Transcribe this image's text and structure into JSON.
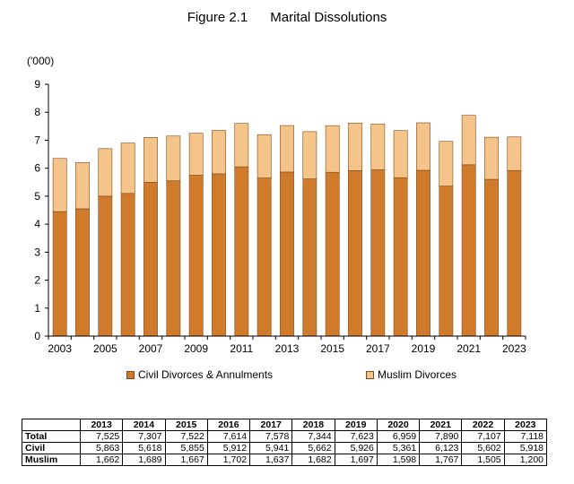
{
  "figure": {
    "number": "Figure 2.1",
    "title": "Marital Dissolutions",
    "unit_label": "('000)"
  },
  "chart_data": {
    "type": "bar",
    "stacked": true,
    "categories": [
      "2003",
      "2004",
      "2005",
      "2006",
      "2007",
      "2008",
      "2009",
      "2010",
      "2011",
      "2012",
      "2013",
      "2014",
      "2015",
      "2016",
      "2017",
      "2018",
      "2019",
      "2020",
      "2021",
      "2022",
      "2023"
    ],
    "x_tick_labels": [
      "2003",
      "2005",
      "2007",
      "2009",
      "2011",
      "2013",
      "2015",
      "2017",
      "2019",
      "2021",
      "2023"
    ],
    "series": [
      {
        "name": "Civil Divorces & Annulments",
        "color": "#d07a2c",
        "values": [
          4.45,
          4.55,
          5.0,
          5.1,
          5.5,
          5.55,
          5.75,
          5.8,
          6.05,
          5.65,
          5.863,
          5.618,
          5.855,
          5.912,
          5.941,
          5.662,
          5.926,
          5.361,
          6.123,
          5.602,
          5.918
        ]
      },
      {
        "name": "Muslim Divorces",
        "color": "#f5c48a",
        "values": [
          1.9,
          1.65,
          1.7,
          1.8,
          1.6,
          1.6,
          1.5,
          1.55,
          1.55,
          1.55,
          1.662,
          1.689,
          1.667,
          1.702,
          1.637,
          1.682,
          1.697,
          1.598,
          1.767,
          1.505,
          1.2
        ]
      }
    ],
    "ylim": [
      0,
      9
    ],
    "yticks": [
      0,
      1,
      2,
      3,
      4,
      5,
      6,
      7,
      8,
      9
    ],
    "legend_position": "bottom",
    "grid": false
  },
  "table": {
    "years": [
      "2013",
      "2014",
      "2015",
      "2016",
      "2017",
      "2018",
      "2019",
      "2020",
      "2021",
      "2022",
      "2023"
    ],
    "rows": [
      {
        "label": "Total",
        "values": [
          "7,525",
          "7,307",
          "7,522",
          "7,614",
          "7,578",
          "7,344",
          "7,623",
          "6,959",
          "7,890",
          "7,107",
          "7,118"
        ]
      },
      {
        "label": "Civil",
        "values": [
          "5,863",
          "5,618",
          "5,855",
          "5,912",
          "5,941",
          "5,662",
          "5,926",
          "5,361",
          "6,123",
          "5,602",
          "5,918"
        ]
      },
      {
        "label": "Muslim",
        "values": [
          "1,662",
          "1,689",
          "1,667",
          "1,702",
          "1,637",
          "1,682",
          "1,697",
          "1,598",
          "1,767",
          "1,505",
          "1,200"
        ]
      }
    ]
  }
}
